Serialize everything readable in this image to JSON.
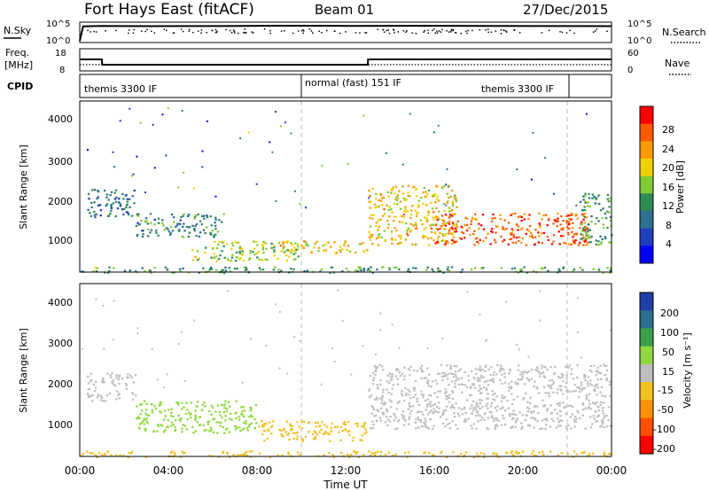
{
  "header": {
    "station": "Fort Hays East (fitACF)",
    "beam": "Beam 01",
    "date": "27/Dec/2015"
  },
  "panels": {
    "nsky": {
      "left_label": "N.Sky",
      "left_ticks": [
        "10^5",
        "10^0"
      ],
      "right_ticks": [
        "10^5",
        "10^0"
      ],
      "right_label": "N.Search"
    },
    "freq": {
      "left_label_1": "Freq.",
      "left_label_2": "[MHz]",
      "left_ticks": [
        "18",
        "8"
      ],
      "right_ticks": [
        "60",
        "0"
      ],
      "right_label": "Nave"
    },
    "cpid": {
      "left_label": "CPID",
      "segments": [
        "themis 3300 IF",
        "normal (fast) 151 IF",
        "themis 3300 IF"
      ]
    }
  },
  "axes": {
    "ylabel": "Slant Range [km]",
    "xlabel": "Time UT",
    "yticks": [
      "4000",
      "3000",
      "2000",
      "1000"
    ],
    "xticks": [
      "00:00",
      "04:00",
      "08:00",
      "12:00",
      "16:00",
      "20:00",
      "00:00"
    ]
  },
  "power_scale": {
    "label": "Power [dB]",
    "ticks": [
      "28",
      "24",
      "20",
      "16",
      "12",
      "8",
      "4"
    ],
    "colors": [
      "#ff0000",
      "#ff5a00",
      "#ff9a00",
      "#f2d000",
      "#7fcc33",
      "#2e8b57",
      "#2f6f8f",
      "#1f3fbf",
      "#0000ff"
    ]
  },
  "velocity_scale": {
    "label": "Velocity [m s⁻¹]",
    "ticks": [
      "200",
      "100",
      "50",
      "15",
      "-15",
      "-50",
      "-100",
      "-200"
    ],
    "colors": [
      "#1e3ea8",
      "#2e6e8e",
      "#3aa04a",
      "#8fd840",
      "#bebebe",
      "#f2c020",
      "#ff9000",
      "#ff5000",
      "#ff0000"
    ]
  },
  "chart_data": [
    {
      "type": "line",
      "title": "N.Sky / N.Search",
      "x_range_hours": [
        0,
        24
      ],
      "series": [
        {
          "name": "N.Sky",
          "x": [
            0,
            0.15,
            1,
            3,
            6,
            9,
            12,
            15,
            18,
            21,
            24
          ],
          "values": [
            1,
            20000,
            25000,
            22000,
            24000,
            30000,
            26000,
            28000,
            27000,
            24000,
            22000
          ]
        }
      ]
    },
    {
      "type": "line",
      "title": "Freq. [MHz] / Nave",
      "x": [
        0,
        1.0,
        1.01,
        13.0,
        13.01,
        24
      ],
      "series": [
        {
          "name": "Freq.",
          "values": [
            13.5,
            13.5,
            10.5,
            10.5,
            13.5,
            13.5
          ]
        },
        {
          "name": "Nave",
          "values": [
            20,
            20,
            20,
            20,
            20,
            20
          ]
        }
      ],
      "ylim": [
        8,
        18
      ]
    },
    {
      "type": "heatmap",
      "title": "Power [dB]",
      "xlabel": "Time UT",
      "ylabel": "Slant Range [km]",
      "xlim": [
        0,
        24
      ],
      "ylim": [
        200,
        4500
      ],
      "clim": [
        0,
        30
      ],
      "regions": [
        {
          "t0": 0.3,
          "t1": 2.5,
          "r0": 1600,
          "r1": 2300,
          "value": 8
        },
        {
          "t0": 2.5,
          "t1": 6.5,
          "r0": 1100,
          "r1": 1700,
          "value": 10
        },
        {
          "t0": 5.0,
          "t1": 10.0,
          "r0": 500,
          "r1": 1000,
          "value": 16
        },
        {
          "t0": 9.0,
          "t1": 13.0,
          "r0": 700,
          "r1": 1000,
          "value": 20
        },
        {
          "t0": 13.0,
          "t1": 17.0,
          "r0": 900,
          "r1": 2400,
          "value": 20
        },
        {
          "t0": 16.0,
          "t1": 23.0,
          "r0": 900,
          "r1": 1700,
          "value": 26
        },
        {
          "t0": 22.5,
          "t1": 24.0,
          "r0": 900,
          "r1": 2200,
          "value": 12
        },
        {
          "t0": 0.0,
          "t1": 24.0,
          "r0": 200,
          "r1": 350,
          "value": 12
        }
      ]
    },
    {
      "type": "heatmap",
      "title": "Velocity [m s⁻¹]",
      "xlabel": "Time UT",
      "ylabel": "Slant Range [km]",
      "xlim": [
        0,
        24
      ],
      "ylim": [
        200,
        4500
      ],
      "clim": [
        -200,
        200
      ],
      "regions": [
        {
          "t0": 0.3,
          "t1": 2.5,
          "r0": 1600,
          "r1": 2300,
          "value": 0
        },
        {
          "t0": 2.5,
          "t1": 8.0,
          "r0": 800,
          "r1": 1600,
          "value": 40
        },
        {
          "t0": 8.0,
          "t1": 13.0,
          "r0": 600,
          "r1": 1100,
          "value": -40
        },
        {
          "t0": 13.0,
          "t1": 24.0,
          "r0": 900,
          "r1": 2500,
          "value": 0
        },
        {
          "t0": 0.0,
          "t1": 24.0,
          "r0": 200,
          "r1": 350,
          "value": -40
        }
      ]
    }
  ]
}
